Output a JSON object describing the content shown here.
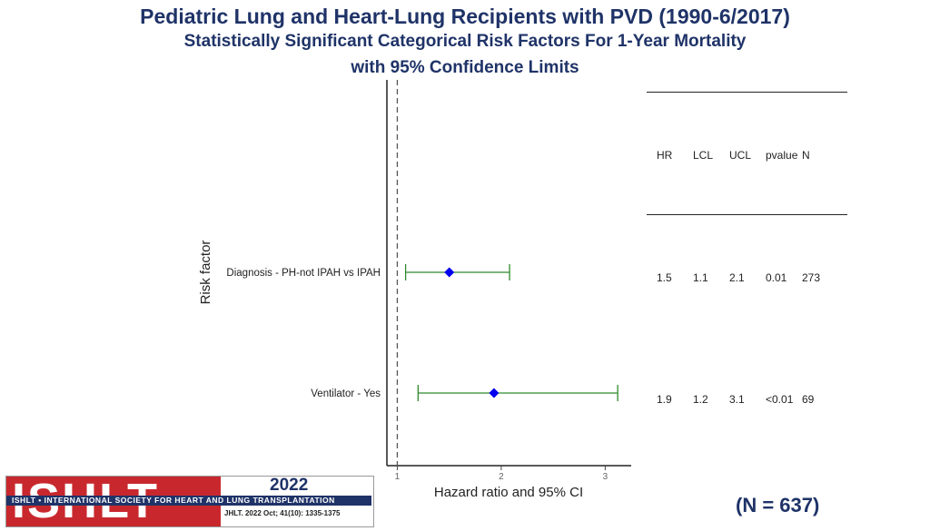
{
  "titles": {
    "line1": "Pediatric Lung and Heart-Lung Recipients with PVD (1990-6/2017)",
    "line2": "Statistically Significant Categorical Risk Factors For 1-Year Mortality",
    "line3": "with 95% Confidence Limits"
  },
  "chart_data": {
    "type": "scatter",
    "subtype": "forest-plot",
    "xlabel": "Hazard ratio and 95% CI",
    "ylabel": "Risk factor",
    "xlim": [
      0.9,
      3.25
    ],
    "xticks": [
      "1",
      "2",
      "3"
    ],
    "reference_line": 1,
    "colors": {
      "point": "#0000ee",
      "ci": "#2e8b2e",
      "ref": "#555555",
      "axis": "#222222"
    },
    "rows": [
      {
        "label": "Diagnosis - PH-not IPAH vs IPAH",
        "hr": 1.5,
        "lcl": 1.08,
        "ucl": 2.08
      },
      {
        "label": "Ventilator - Yes",
        "hr": 1.93,
        "lcl": 1.2,
        "ucl": 3.12
      }
    ]
  },
  "table": {
    "headers": [
      "HR",
      "LCL",
      "UCL",
      "pvalue",
      "N"
    ],
    "rows": [
      [
        "1.5",
        "1.1",
        "2.1",
        "0.01",
        "273"
      ],
      [
        "1.9",
        "1.2",
        "3.1",
        "<0.01",
        "69"
      ]
    ]
  },
  "logo": {
    "name": "ISHLT",
    "band": "ISHLT • INTERNATIONAL SOCIETY FOR HEART AND LUNG TRANSPLANTATION",
    "year": "2022",
    "citation": "JHLT. 2022 Oct; 41(10): 1335-1375"
  },
  "n_count": "(N = 637)"
}
